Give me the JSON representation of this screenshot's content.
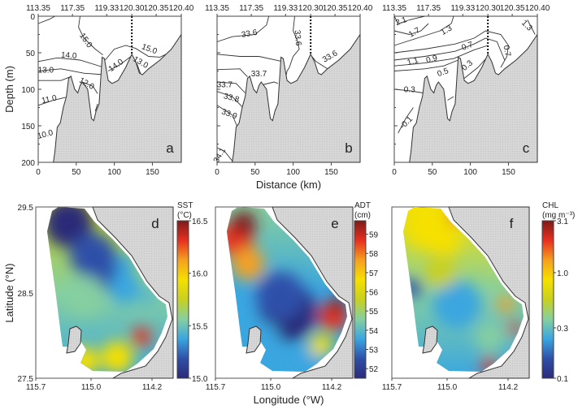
{
  "chart_data": [
    {
      "panel": "a",
      "type": "contour",
      "xlabel": "Distance (km)",
      "ylabel": "Depth (m)",
      "x_ticks": [
        0,
        50,
        100,
        150
      ],
      "y_ticks": [
        0,
        50,
        100,
        150,
        200
      ],
      "xlim": [
        0,
        188
      ],
      "ylim": [
        200,
        0
      ],
      "top_ticks": [
        {
          "d": 0,
          "label": "113.35"
        },
        {
          "d": 45,
          "label": "117.35"
        },
        {
          "d": 90,
          "label": "119.33"
        },
        {
          "d": 123,
          "label": "120.30"
        },
        {
          "d": 155,
          "label": "120.35"
        },
        {
          "d": 188,
          "label": "120.40"
        }
      ],
      "station_line_km": 123,
      "contour_labels": [
        {
          "text": "15.0",
          "d": 60,
          "z": 35,
          "rot": 55
        },
        {
          "text": "15.0",
          "d": 145,
          "z": 48,
          "rot": 20
        },
        {
          "text": "14.0",
          "d": 40,
          "z": 57,
          "rot": 5
        },
        {
          "text": "14.0",
          "d": 104,
          "z": 70,
          "rot": -35
        },
        {
          "text": "13.0",
          "d": 10,
          "z": 77,
          "rot": 0
        },
        {
          "text": "13.0",
          "d": 133,
          "z": 66,
          "rot": 30
        },
        {
          "text": "12.0",
          "d": 62,
          "z": 95,
          "rot": 30
        },
        {
          "text": "11.0",
          "d": 15,
          "z": 117,
          "rot": -12
        },
        {
          "text": "10.0",
          "d": 10,
          "z": 165,
          "rot": -15
        }
      ],
      "panel_label": "a"
    },
    {
      "panel": "b",
      "type": "contour",
      "x_ticks": [
        0,
        50,
        100,
        150
      ],
      "xlim": [
        0,
        188
      ],
      "ylim": [
        200,
        0
      ],
      "top_ticks": [
        {
          "d": 0,
          "label": "113.35"
        },
        {
          "d": 45,
          "label": "117.35"
        },
        {
          "d": 90,
          "label": "119.33"
        },
        {
          "d": 123,
          "label": "120.30"
        },
        {
          "d": 155,
          "label": "120.35"
        },
        {
          "d": 188,
          "label": "120.40"
        }
      ],
      "station_line_km": 123,
      "contour_labels": [
        {
          "text": "33.6",
          "d": 43,
          "z": 27,
          "rot": -10
        },
        {
          "text": "33.6",
          "d": 103,
          "z": 30,
          "rot": 85
        },
        {
          "text": "33.6",
          "d": 150,
          "z": 58,
          "rot": -30
        },
        {
          "text": "33.7",
          "d": 55,
          "z": 82,
          "rot": 0
        },
        {
          "text": "33.7",
          "d": 10,
          "z": 97,
          "rot": 0
        },
        {
          "text": "33.8",
          "d": 18,
          "z": 115,
          "rot": 15
        },
        {
          "text": "33.9",
          "d": 15,
          "z": 137,
          "rot": 20
        },
        {
          "text": "34.1",
          "d": 6,
          "z": 192,
          "rot": -60
        }
      ],
      "panel_label": "b"
    },
    {
      "panel": "c",
      "type": "contour",
      "x_ticks": [
        0,
        50,
        100,
        150
      ],
      "xlim": [
        0,
        188
      ],
      "ylim": [
        200,
        0
      ],
      "top_ticks": [
        {
          "d": 0,
          "label": "113.35"
        },
        {
          "d": 45,
          "label": "117.35"
        },
        {
          "d": 90,
          "label": "119.33"
        },
        {
          "d": 123,
          "label": "120.30"
        },
        {
          "d": 155,
          "label": "120.35"
        },
        {
          "d": 188,
          "label": "120.40"
        }
      ],
      "station_line_km": 123,
      "contour_labels": [
        {
          "text": "2.1",
          "d": 10,
          "z": 10,
          "rot": -20
        },
        {
          "text": "1.7",
          "d": 28,
          "z": 25,
          "rot": -30
        },
        {
          "text": "1.3",
          "d": 70,
          "z": 22,
          "rot": -30
        },
        {
          "text": "1.3",
          "d": 172,
          "z": 15,
          "rot": 45
        },
        {
          "text": "1.1",
          "d": 25,
          "z": 65,
          "rot": -15
        },
        {
          "text": "0.9",
          "d": 50,
          "z": 62,
          "rot": -15
        },
        {
          "text": "0.7",
          "d": 97,
          "z": 44,
          "rot": -20
        },
        {
          "text": "0.7",
          "d": 145,
          "z": 48,
          "rot": 80
        },
        {
          "text": "0.5",
          "d": 65,
          "z": 80,
          "rot": -20
        },
        {
          "text": "0.3",
          "d": 98,
          "z": 70,
          "rot": -40
        },
        {
          "text": "0.3",
          "d": 20,
          "z": 104,
          "rot": 0
        },
        {
          "text": "-0.1",
          "d": 18,
          "z": 148,
          "rot": -45
        }
      ],
      "panel_label": "c"
    },
    {
      "panel": "d",
      "type": "heatmap",
      "variable": "SST",
      "unit": "(°C)",
      "ylabel": "Latitude (°N)",
      "y_ticks": [
        "29.5",
        "28.5",
        "27.5"
      ],
      "x_ticks": [
        "115.7",
        "115.0",
        "114.2"
      ],
      "colorbar_ticks": [
        "16.5",
        "16.0",
        "15.5",
        "15.0"
      ],
      "colorbar_range": [
        15.0,
        16.5
      ],
      "panel_label": "d"
    },
    {
      "panel": "e",
      "type": "heatmap",
      "variable": "ADT",
      "unit": "(cm)",
      "xlabel": "Longitude (°W)",
      "x_ticks": [
        "115.7",
        "115.0",
        "114.2"
      ],
      "colorbar_ticks": [
        "59",
        "58",
        "57",
        "56",
        "55",
        "54",
        "53",
        "52"
      ],
      "colorbar_range": [
        51.5,
        59.7
      ],
      "panel_label": "e"
    },
    {
      "panel": "f",
      "type": "heatmap",
      "variable": "CHL",
      "unit": "(mg m⁻³)",
      "x_ticks": [
        "115.7",
        "115.0",
        "114.2"
      ],
      "colorbar_ticks": [
        "3.1",
        "1.0",
        "0.3",
        "0.1"
      ],
      "colorbar_scale": "log",
      "panel_label": "f"
    }
  ],
  "bathymetry": [
    [
      20,
      200
    ],
    [
      22,
      185
    ],
    [
      25,
      152
    ],
    [
      29,
      146
    ],
    [
      33,
      125
    ],
    [
      37,
      110
    ],
    [
      40,
      85
    ],
    [
      43,
      82
    ],
    [
      48,
      100
    ],
    [
      52,
      105
    ],
    [
      55,
      95
    ],
    [
      58,
      90
    ],
    [
      65,
      100
    ],
    [
      70,
      140
    ],
    [
      73,
      143
    ],
    [
      76,
      130
    ],
    [
      80,
      120
    ],
    [
      84,
      56
    ],
    [
      87,
      58
    ],
    [
      92,
      88
    ],
    [
      97,
      92
    ],
    [
      105,
      88
    ],
    [
      115,
      70
    ],
    [
      123,
      52
    ],
    [
      128,
      62
    ],
    [
      133,
      78
    ],
    [
      137,
      80
    ],
    [
      145,
      72
    ],
    [
      160,
      60
    ],
    [
      175,
      45
    ],
    [
      188,
      25
    ]
  ],
  "colors": {
    "land": "#d4d4d4",
    "line": "#333333",
    "colormap": [
      "#2b2a78",
      "#2f4fa8",
      "#3aa6e0",
      "#86cfa0",
      "#c8d020",
      "#f5e000",
      "#f5a020",
      "#e63020",
      "#7e1a1a"
    ]
  }
}
